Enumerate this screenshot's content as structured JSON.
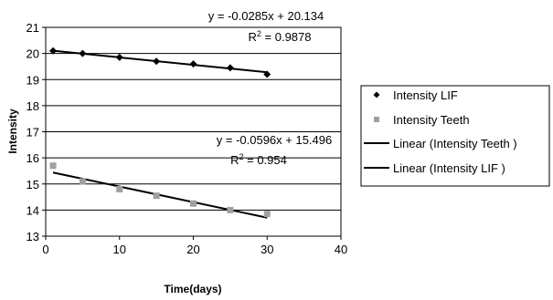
{
  "chart_data": {
    "type": "scatter",
    "title": "",
    "xlabel": "Time(days)",
    "ylabel": "Intensity",
    "xlim": [
      0,
      40
    ],
    "ylim": [
      13,
      21
    ],
    "x_ticks": [
      0,
      10,
      20,
      30,
      40
    ],
    "y_ticks": [
      13,
      14,
      15,
      16,
      17,
      18,
      19,
      20,
      21
    ],
    "x_tick_labels": [
      "0",
      "10",
      "20",
      "30",
      "40"
    ],
    "y_tick_labels": [
      "13",
      "14",
      "15",
      "16",
      "17",
      "18",
      "19",
      "20",
      "21"
    ],
    "grid": "horizontal",
    "legend_position": "right",
    "series": [
      {
        "name": "Intensity LIF",
        "marker": "diamond",
        "color": "#000000",
        "x": [
          1,
          5,
          10,
          15,
          20,
          25,
          30
        ],
        "y": [
          20.1,
          20.0,
          19.85,
          19.7,
          19.6,
          19.45,
          19.2
        ]
      },
      {
        "name": "Intensity Teeth",
        "marker": "square",
        "color": "#a0a0a0",
        "x": [
          1,
          5,
          10,
          15,
          20,
          25,
          30
        ],
        "y": [
          15.7,
          15.1,
          14.8,
          14.55,
          14.25,
          14.0,
          13.85
        ]
      }
    ],
    "trendlines": [
      {
        "name": "Linear (Intensity Teeth )",
        "slope": -0.0596,
        "intercept": 15.496,
        "x_range": [
          1,
          30
        ],
        "equation_label": "y = -0.0596x + 15.496",
        "r2_prefix": "R",
        "r2_suffix": " = 0.954"
      },
      {
        "name": "Linear (Intensity LIF )",
        "slope": -0.0285,
        "intercept": 20.134,
        "x_range": [
          1,
          30
        ],
        "equation_label": "y = -0.0285x + 20.134",
        "r2_prefix": "R",
        "r2_suffix": " = 0.9878"
      }
    ],
    "legend": [
      {
        "label": "Intensity LIF",
        "symbol": "diamond",
        "color": "#000000"
      },
      {
        "label": "Intensity Teeth",
        "symbol": "square",
        "color": "#a0a0a0"
      },
      {
        "label": "Linear (Intensity Teeth )",
        "symbol": "line",
        "color": "#000000"
      },
      {
        "label": "Linear (Intensity LIF )",
        "symbol": "line",
        "color": "#000000"
      }
    ]
  }
}
